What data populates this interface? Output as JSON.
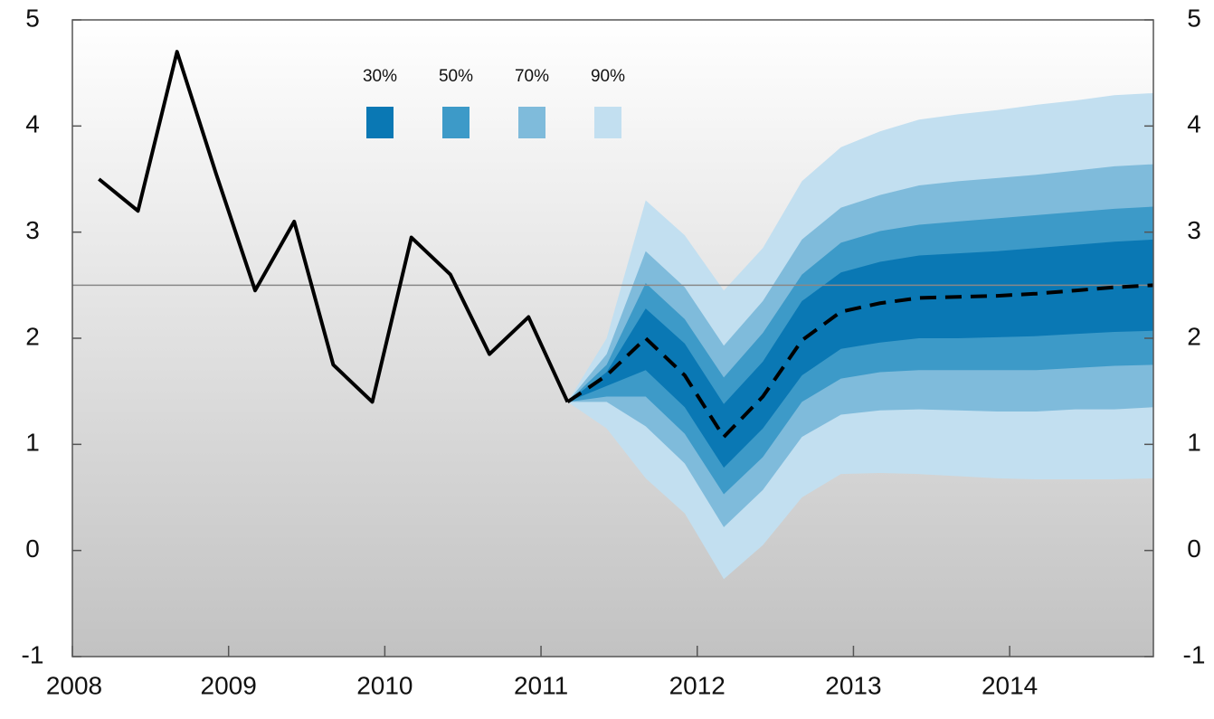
{
  "chart_data": {
    "type": "fan",
    "xlim": [
      2008,
      2014.92
    ],
    "xticks": [
      2008,
      2009,
      2010,
      2011,
      2012,
      2013,
      2014
    ],
    "ylim": [
      -1,
      5
    ],
    "yticks": [
      -1,
      0,
      1,
      2,
      3,
      4,
      5
    ],
    "reference_line": 2.5,
    "history": {
      "color": "#000000",
      "x": [
        2008.17,
        2008.42,
        2008.67,
        2008.92,
        2009.17,
        2009.42,
        2009.67,
        2009.92,
        2010.17,
        2010.42,
        2010.67,
        2010.92,
        2011.17
      ],
      "values": [
        3.5,
        3.2,
        4.7,
        3.55,
        2.45,
        3.1,
        1.75,
        1.4,
        2.95,
        2.6,
        1.85,
        2.2,
        1.4
      ]
    },
    "forecast_x": [
      2011.17,
      2011.42,
      2011.67,
      2011.92,
      2012.17,
      2012.42,
      2012.67,
      2012.92,
      2013.17,
      2013.42,
      2013.67,
      2013.92,
      2014.17,
      2014.42,
      2014.67,
      2014.92
    ],
    "median": {
      "color": "#000000",
      "values": [
        1.4,
        1.65,
        2.0,
        1.65,
        1.07,
        1.45,
        1.98,
        2.25,
        2.33,
        2.38,
        2.39,
        2.4,
        2.42,
        2.45,
        2.48,
        2.5
      ]
    },
    "bands": [
      {
        "name": "30%",
        "color": "#0a78b4",
        "upper": [
          1.4,
          1.68,
          2.28,
          1.95,
          1.38,
          1.78,
          2.35,
          2.62,
          2.72,
          2.78,
          2.8,
          2.82,
          2.85,
          2.88,
          2.91,
          2.93
        ],
        "lower": [
          1.4,
          1.55,
          1.7,
          1.35,
          0.78,
          1.15,
          1.65,
          1.9,
          1.96,
          2.0,
          2.0,
          2.01,
          2.02,
          2.04,
          2.06,
          2.07
        ]
      },
      {
        "name": "50%",
        "color": "#3d9ac8",
        "upper": [
          1.4,
          1.75,
          2.52,
          2.18,
          1.63,
          2.05,
          2.6,
          2.9,
          3.01,
          3.07,
          3.1,
          3.13,
          3.16,
          3.19,
          3.22,
          3.24
        ],
        "lower": [
          1.4,
          1.45,
          1.45,
          1.1,
          0.53,
          0.88,
          1.4,
          1.62,
          1.68,
          1.7,
          1.7,
          1.7,
          1.7,
          1.72,
          1.74,
          1.75
        ]
      },
      {
        "name": "70%",
        "color": "#7fbbdb",
        "upper": [
          1.4,
          1.85,
          2.82,
          2.48,
          1.93,
          2.35,
          2.93,
          3.23,
          3.35,
          3.44,
          3.48,
          3.51,
          3.54,
          3.58,
          3.62,
          3.64
        ],
        "lower": [
          1.4,
          1.4,
          1.17,
          0.82,
          0.22,
          0.57,
          1.07,
          1.28,
          1.32,
          1.33,
          1.32,
          1.31,
          1.31,
          1.33,
          1.33,
          1.35
        ]
      },
      {
        "name": "90%",
        "color": "#c2dff0",
        "upper": [
          1.4,
          2.0,
          3.3,
          2.97,
          2.45,
          2.85,
          3.48,
          3.8,
          3.95,
          4.06,
          4.11,
          4.15,
          4.2,
          4.24,
          4.29,
          4.31
        ],
        "lower": [
          1.4,
          1.15,
          0.68,
          0.35,
          -0.27,
          0.05,
          0.5,
          0.72,
          0.73,
          0.72,
          0.7,
          0.68,
          0.67,
          0.67,
          0.67,
          0.68
        ]
      }
    ]
  }
}
